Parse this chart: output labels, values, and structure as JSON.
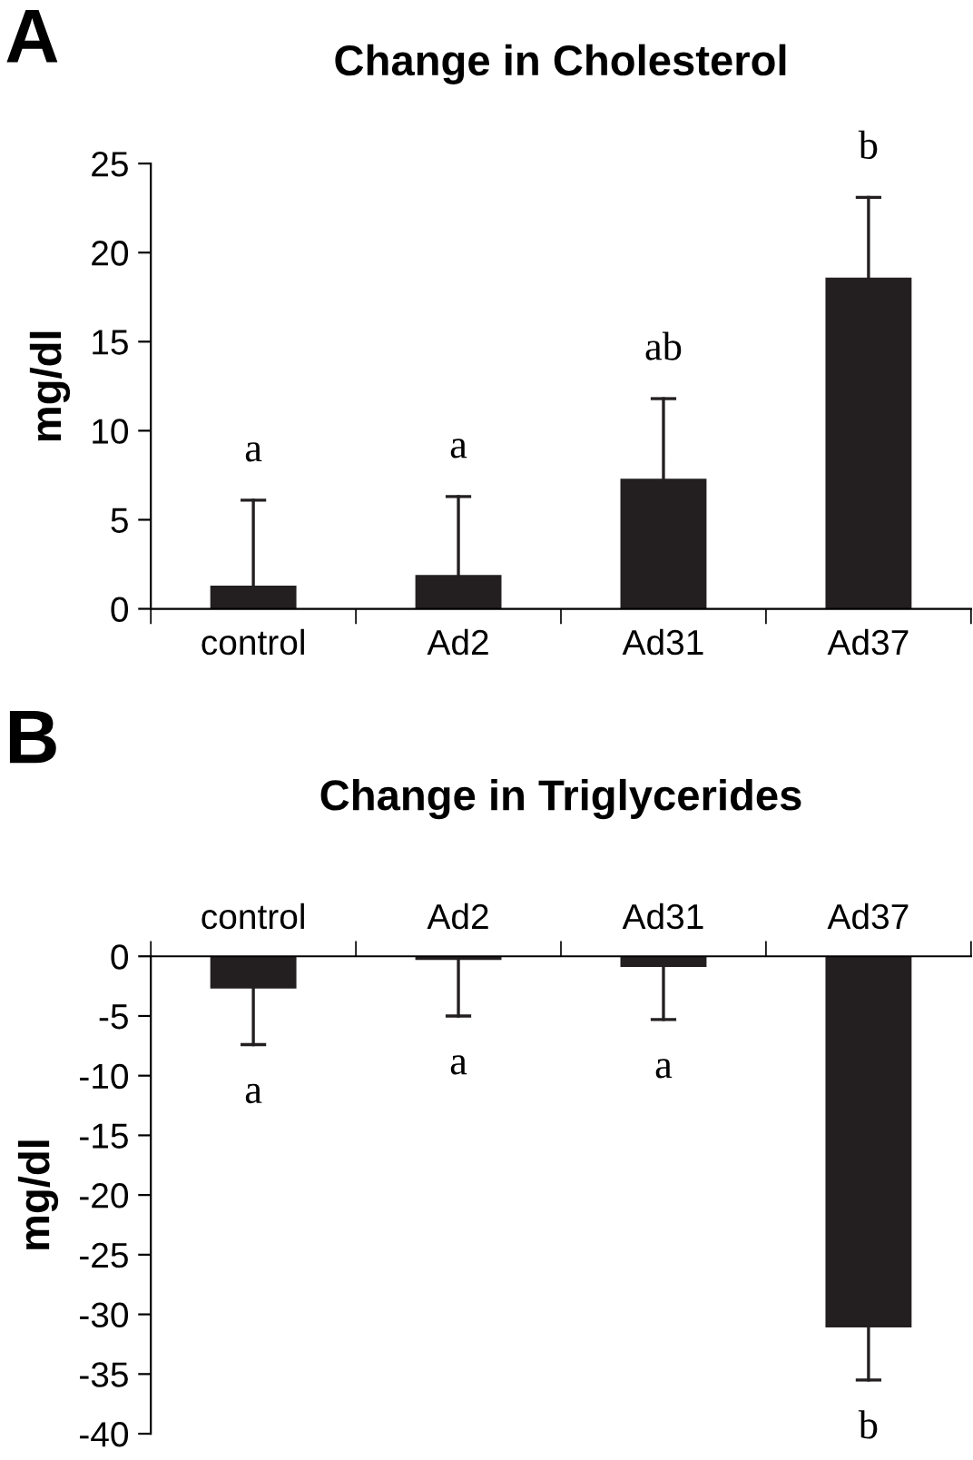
{
  "chart_data": [
    {
      "type": "bar",
      "title": "Change in Cholesterol",
      "ylabel": "mg/dl",
      "categories": [
        "control",
        "Ad2",
        "Ad31",
        "Ad37"
      ],
      "values": [
        1.3,
        1.9,
        7.3,
        18.6
      ],
      "errors": [
        [
          1.3,
          6.1
        ],
        [
          1.9,
          6.3
        ],
        [
          7.3,
          11.8
        ],
        [
          18.6,
          23.1
        ]
      ],
      "color": "#231f20",
      "ylim": [
        0,
        25
      ],
      "yticks": [
        0,
        5,
        10,
        15,
        20,
        25
      ],
      "grid": false,
      "legend": false,
      "annotations": [
        "A",
        {
          "text": "a",
          "x": "control",
          "y": 6.1
        },
        {
          "text": "a",
          "x": "Ad2",
          "y": 6.3
        },
        {
          "text": "ab",
          "x": "Ad31",
          "y": 11.8
        },
        {
          "text": "b",
          "x": "Ad37",
          "y": 23.1
        }
      ]
    },
    {
      "type": "bar",
      "title": "Change in Triglycerides",
      "ylabel": "mg/dl",
      "categories": [
        "control",
        "Ad2",
        "Ad31",
        "Ad37"
      ],
      "values": [
        -2.7,
        -0.3,
        -0.9,
        -31.1
      ],
      "errors": [
        [
          -7.4,
          -2.7
        ],
        [
          -5.0,
          -0.3
        ],
        [
          -5.3,
          -0.9
        ],
        [
          -35.5,
          -31.1
        ]
      ],
      "color": "#231f20",
      "ylim": [
        -40,
        0
      ],
      "yticks": [
        -40,
        -35,
        -30,
        -25,
        -20,
        -15,
        -10,
        -5,
        0
      ],
      "grid": false,
      "legend": false,
      "annotations": [
        "B",
        {
          "text": "a",
          "x": "control",
          "y": -7.4
        },
        {
          "text": "a",
          "x": "Ad2",
          "y": -5.0
        },
        {
          "text": "a",
          "x": "Ad31",
          "y": -5.3
        },
        {
          "text": "b",
          "x": "Ad37",
          "y": -35.5
        }
      ]
    }
  ]
}
